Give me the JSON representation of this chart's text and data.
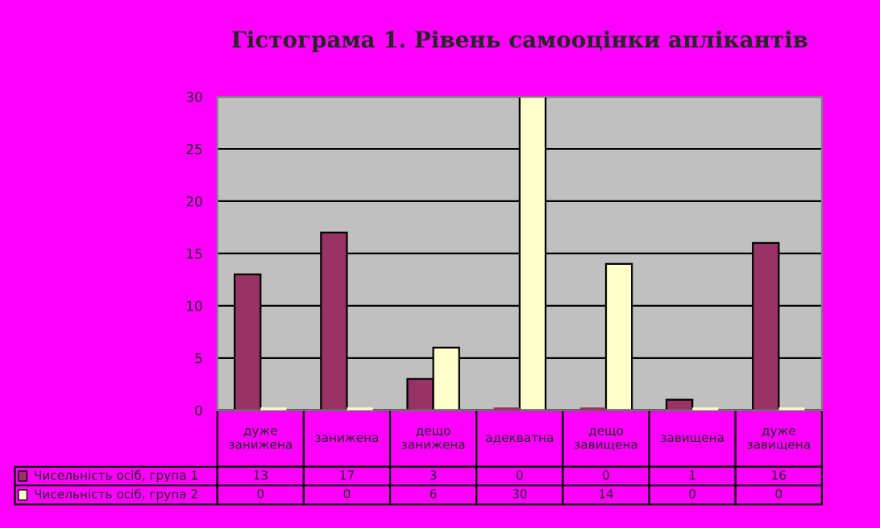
{
  "chart_data": {
    "type": "bar",
    "title": "Гістограма 1. Рівень самооцінки аплікантів",
    "categories": [
      "дуже\nзанижена",
      "занижена",
      "дещо\nзанижена",
      "адекватна",
      "дещо\nзавищена",
      "завищена",
      "дуже\nзавищена"
    ],
    "series": [
      {
        "name": "Чисельність осіб, група 1",
        "color": "#993366",
        "values": [
          13,
          17,
          3,
          0,
          0,
          1,
          16
        ]
      },
      {
        "name": "Чисельність осіб, група 2",
        "color": "#ffffcc",
        "values": [
          0,
          0,
          6,
          30,
          14,
          0,
          0
        ]
      }
    ],
    "ylim": [
      0,
      30
    ],
    "yticks": [
      0,
      5,
      10,
      15,
      20,
      25,
      30
    ],
    "grid": "y",
    "data_labels": true,
    "legend": "bottom left"
  }
}
